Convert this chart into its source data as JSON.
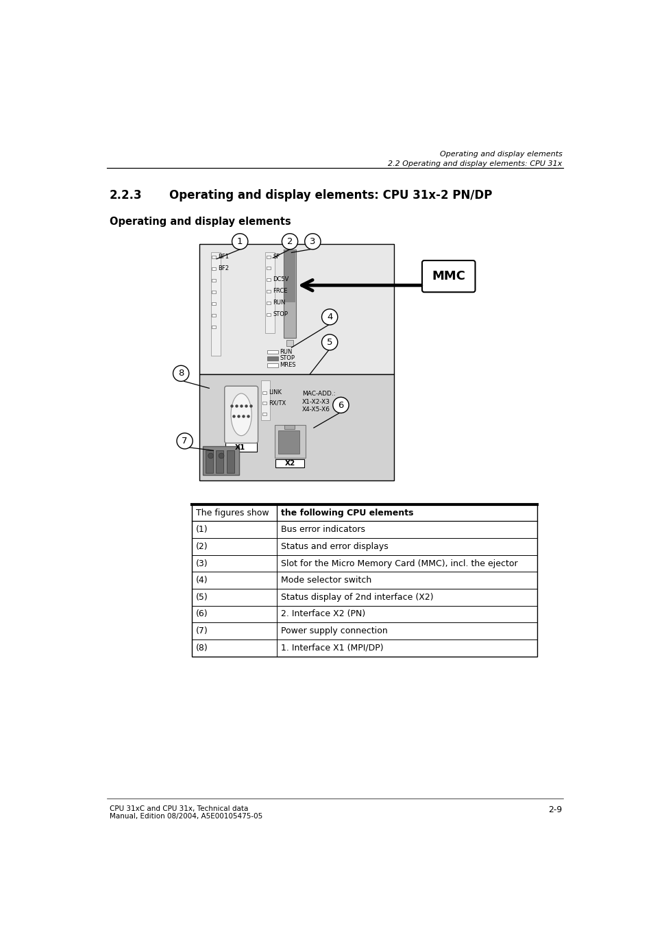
{
  "page_header_right_top": "Operating and display elements",
  "page_header_right_bot": "2.2 Operating and display elements: CPU 31x",
  "section_num": "2.2.3",
  "section_title": "Operating and display elements: CPU 31x-2 PN/DP",
  "sub_heading": "Operating and display elements",
  "table_headers": [
    "The figures show",
    "the following CPU elements"
  ],
  "table_rows": [
    [
      "(1)",
      "Bus error indicators"
    ],
    [
      "(2)",
      "Status and error displays"
    ],
    [
      "(3)",
      "Slot for the Micro Memory Card (MMC), incl. the ejector"
    ],
    [
      "(4)",
      "Mode selector switch"
    ],
    [
      "(5)",
      "Status display of 2nd interface (X2)"
    ],
    [
      "(6)",
      "2. Interface X2 (PN)"
    ],
    [
      "(7)",
      "Power supply connection"
    ],
    [
      "(8)",
      "1. Interface X1 (MPI/DP)"
    ]
  ],
  "footer_left1": "CPU 31xC and CPU 31x, Technical data",
  "footer_left2": "Manual, Edition 08/2004, A5E00105475-05",
  "footer_right": "2-9",
  "bg_color": "#ffffff",
  "diag_top_color": "#e8e8e8",
  "diag_bot_color": "#d2d2d2",
  "led_strip_color": "#f2f2f2",
  "mmc_slot_color": "#aaaaaa",
  "mmc_slot_dark": "#888888",
  "switch_stop_color": "#777777",
  "db9_fill": "#f0f0f0",
  "rj45_body": "#bbbbbb",
  "rj45_port": "#888888",
  "ps_body": "#888888",
  "ps_inner": "#555555"
}
